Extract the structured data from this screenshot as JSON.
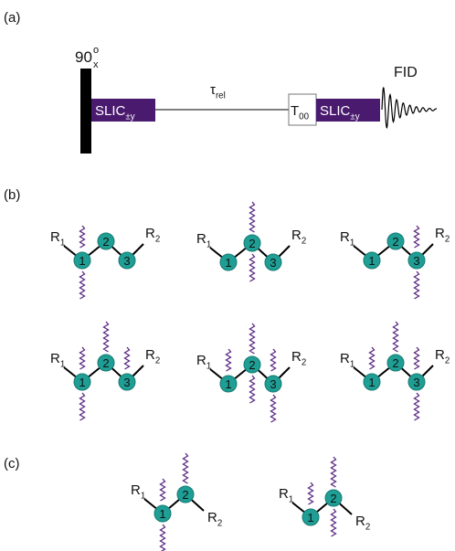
{
  "panel_a": {
    "label": "(a)",
    "pulse": {
      "base": "90",
      "sup": "o",
      "sub": "x"
    },
    "slic_1": {
      "base": "SLIC",
      "sub": "±y"
    },
    "tau": {
      "base": "τ",
      "sub": "rel"
    },
    "t00": {
      "base": "T",
      "sub": "00"
    },
    "slic_2": {
      "base": "SLIC",
      "sub": "±y"
    },
    "fid": "FID"
  },
  "panel_b": {
    "label": "(b)",
    "molecules": [
      {
        "left": {
          "base": "R",
          "sub": "1"
        },
        "right": {
          "base": "R",
          "sub": "2"
        },
        "nodes": [
          "1",
          "2",
          "3"
        ]
      },
      {
        "left": {
          "base": "R",
          "sub": "1"
        },
        "right": {
          "base": "R",
          "sub": "2"
        },
        "nodes": [
          "1",
          "2",
          "3"
        ]
      },
      {
        "left": {
          "base": "R",
          "sub": "1"
        },
        "right": {
          "base": "R",
          "sub": "2"
        },
        "nodes": [
          "1",
          "2",
          "3"
        ]
      },
      {
        "left": {
          "base": "R",
          "sub": "1"
        },
        "right": {
          "base": "R",
          "sub": "2"
        },
        "nodes": [
          "1",
          "2",
          "3"
        ]
      },
      {
        "left": {
          "base": "R",
          "sub": "1"
        },
        "right": {
          "base": "R",
          "sub": "2"
        },
        "nodes": [
          "1",
          "2",
          "3"
        ]
      },
      {
        "left": {
          "base": "R",
          "sub": "1"
        },
        "right": {
          "base": "R",
          "sub": "2"
        },
        "nodes": [
          "1",
          "2",
          "3"
        ]
      }
    ]
  },
  "panel_c": {
    "label": "(c)",
    "molecules": [
      {
        "left": {
          "base": "R",
          "sub": "1"
        },
        "right": {
          "base": "R",
          "sub": "2"
        },
        "nodes": [
          "1",
          "2"
        ]
      },
      {
        "left": {
          "base": "R",
          "sub": "1"
        },
        "right": {
          "base": "R",
          "sub": "2"
        },
        "nodes": [
          "1",
          "2"
        ]
      }
    ]
  }
}
